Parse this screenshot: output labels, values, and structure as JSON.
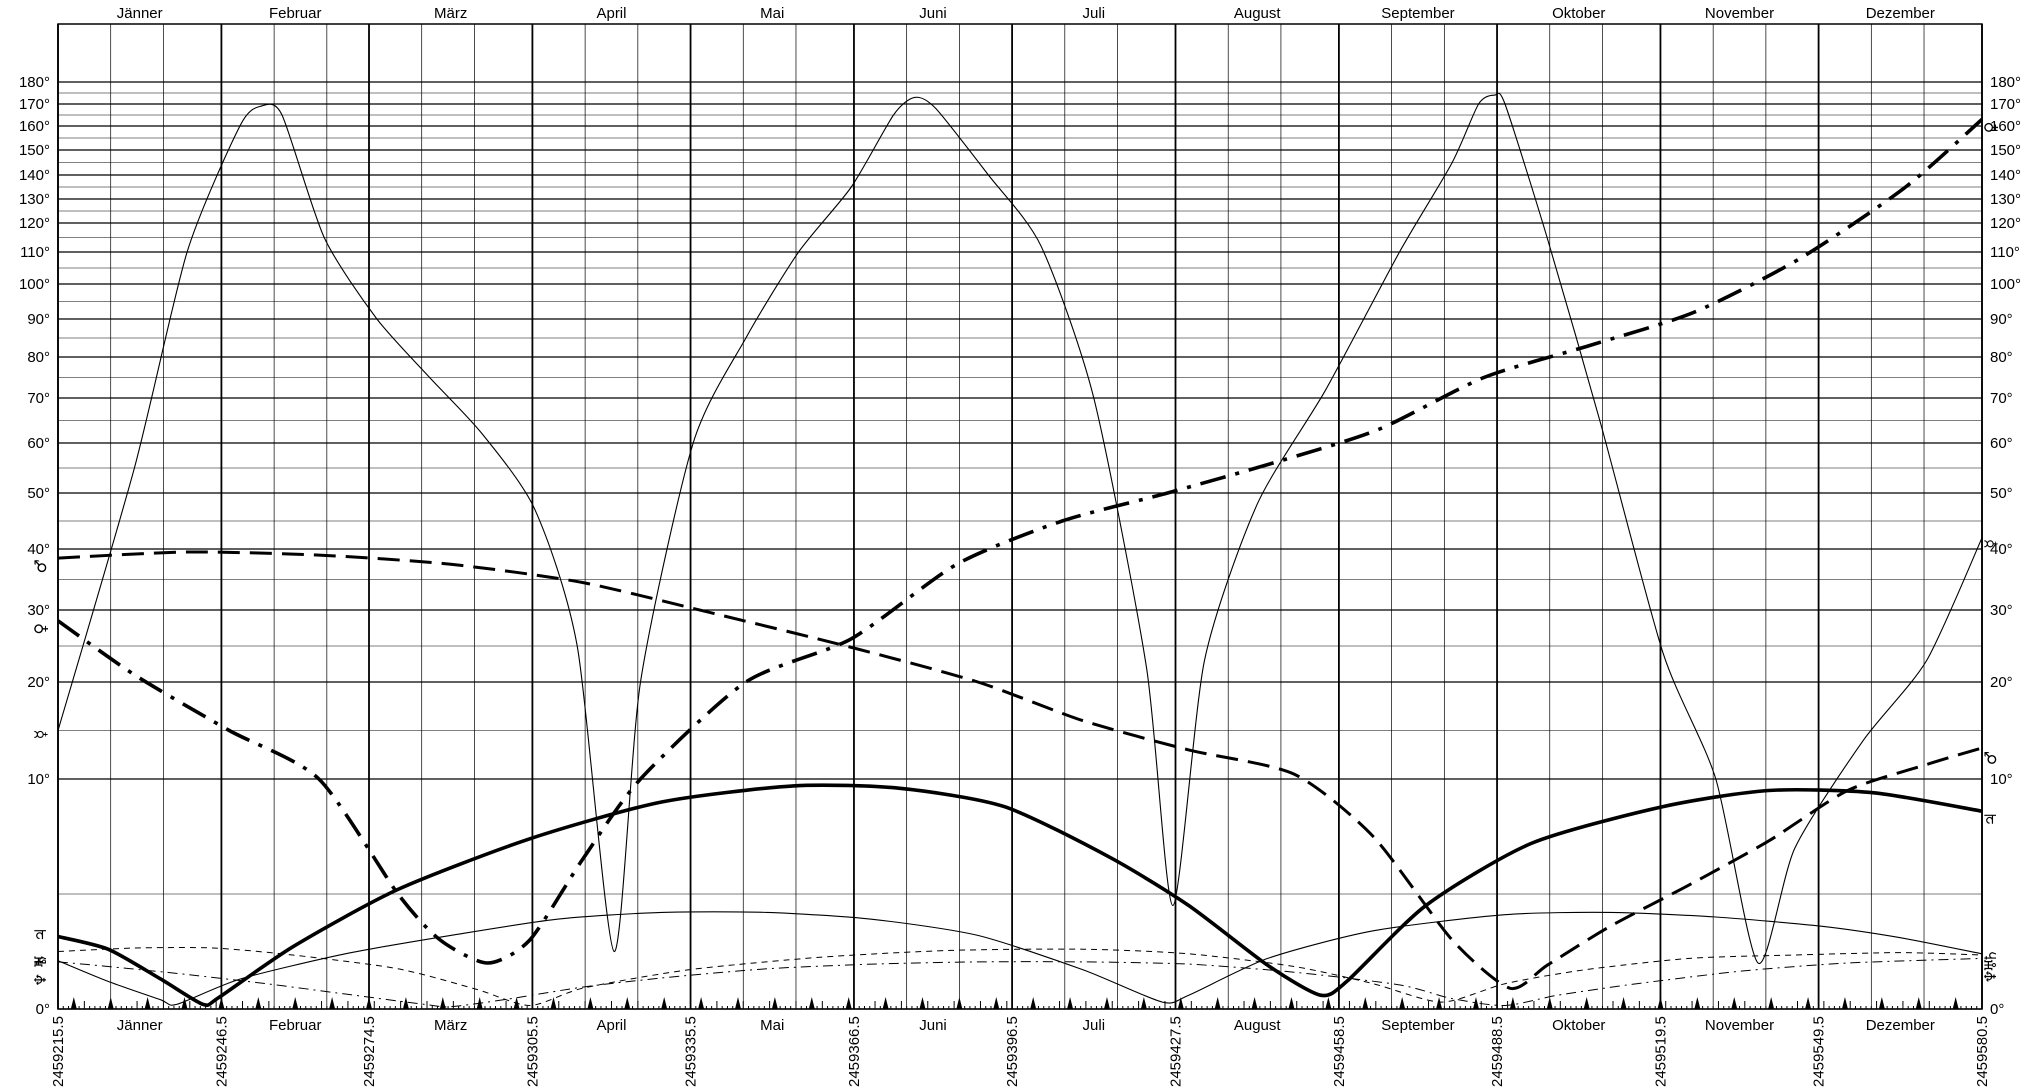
{
  "chart_data": {
    "type": "line",
    "title": "",
    "xlabel": "",
    "ylabel": "",
    "xlim": [
      2459215.5,
      2459580.5
    ],
    "y_axis": {
      "scale": "piecewise",
      "ticks": [
        0,
        10,
        20,
        30,
        40,
        50,
        60,
        70,
        80,
        90,
        100,
        110,
        120,
        130,
        140,
        150,
        160,
        170,
        180
      ],
      "tick_labels": [
        "0°",
        "10°",
        "20°",
        "30°",
        "40°",
        "50°",
        "60°",
        "70°",
        "80°",
        "90°",
        "100°",
        "110°",
        "120°",
        "130°",
        "140°",
        "150°",
        "160°",
        "170°",
        "180°"
      ]
    },
    "months": [
      "Jänner",
      "Februar",
      "März",
      "April",
      "Mai",
      "Juni",
      "Juli",
      "August",
      "September",
      "Oktober",
      "November",
      "Dezember"
    ],
    "month_start_jd": [
      2459215.5,
      2459246.5,
      2459274.5,
      2459305.5,
      2459335.5,
      2459366.5,
      2459396.5,
      2459427.5,
      2459458.5,
      2459488.5,
      2459519.5,
      2459549.5,
      2459580.5
    ],
    "jd_tick_labels": [
      "2459215.5",
      "2459246.5",
      "2459274.5",
      "2459305.5",
      "2459335.5",
      "2459366.5",
      "2459396.5",
      "2459427.5",
      "2459458.5",
      "2459488.5",
      "2459519.5",
      "2459549.5",
      "2459580.5"
    ],
    "grid": true,
    "series": [
      {
        "name": "☿",
        "style": "thin",
        "points": [
          [
            2459215.5,
            15
          ],
          [
            2459230,
            55
          ],
          [
            2459240,
            110
          ],
          [
            2459250,
            160
          ],
          [
            2459254,
            169
          ],
          [
            2459258,
            165
          ],
          [
            2459266,
            115
          ],
          [
            2459276,
            90
          ],
          [
            2459286,
            75
          ],
          [
            2459296,
            62
          ],
          [
            2459306,
            47
          ],
          [
            2459314,
            25
          ],
          [
            2459321,
            2.5
          ],
          [
            2459326,
            20
          ],
          [
            2459336,
            60
          ],
          [
            2459346,
            85
          ],
          [
            2459356,
            110
          ],
          [
            2459366,
            135
          ],
          [
            2459374,
            165
          ],
          [
            2459378,
            173
          ],
          [
            2459382,
            168
          ],
          [
            2459392,
            140
          ],
          [
            2459402,
            112
          ],
          [
            2459412,
            70
          ],
          [
            2459422,
            22
          ],
          [
            2459427,
            4.5
          ],
          [
            2459433,
            23
          ],
          [
            2459443,
            48
          ],
          [
            2459456,
            72
          ],
          [
            2459470,
            110
          ],
          [
            2459480,
            145
          ],
          [
            2459485,
            170
          ],
          [
            2459488,
            174
          ],
          [
            2459490,
            170
          ],
          [
            2459498,
            115
          ],
          [
            2459508,
            65
          ],
          [
            2459520,
            24
          ],
          [
            2459530,
            10
          ],
          [
            2459538,
            2
          ],
          [
            2459545,
            7
          ],
          [
            2459558,
            14
          ],
          [
            2459570,
            23
          ],
          [
            2459580.5,
            42
          ]
        ]
      },
      {
        "name": "♀",
        "style": "thick-dashdot",
        "points": [
          [
            2459215.5,
            28.5
          ],
          [
            2459230,
            21
          ],
          [
            2459248,
            15
          ],
          [
            2459265,
            10
          ],
          [
            2459280,
            5
          ],
          [
            2459288,
            3
          ],
          [
            2459297,
            2
          ],
          [
            2459305,
            3
          ],
          [
            2459315,
            6.5
          ],
          [
            2459326,
            10
          ],
          [
            2459346,
            20
          ],
          [
            2459366,
            26
          ],
          [
            2459386,
            37.5
          ],
          [
            2459406,
            45
          ],
          [
            2459426,
            50
          ],
          [
            2459446,
            56
          ],
          [
            2459466,
            63
          ],
          [
            2459486,
            75
          ],
          [
            2459506,
            83
          ],
          [
            2459526,
            92
          ],
          [
            2459546,
            108
          ],
          [
            2459566,
            135
          ],
          [
            2459580.5,
            163
          ]
        ]
      },
      {
        "name": "♂",
        "style": "dashed",
        "points": [
          [
            2459215.5,
            38.5
          ],
          [
            2459240,
            39.5
          ],
          [
            2459265,
            39
          ],
          [
            2459290,
            37.5
          ],
          [
            2459315,
            34.5
          ],
          [
            2459340,
            29.5
          ],
          [
            2459365,
            25
          ],
          [
            2459390,
            20
          ],
          [
            2459410,
            16
          ],
          [
            2459430,
            13
          ],
          [
            2459450,
            10.5
          ],
          [
            2459465,
            7.5
          ],
          [
            2459480,
            3
          ],
          [
            2459491,
            0.9
          ],
          [
            2459498,
            1.9
          ],
          [
            2459510,
            3.6
          ],
          [
            2459525,
            5.4
          ],
          [
            2459540,
            7.3
          ],
          [
            2459555,
            9.5
          ],
          [
            2459570,
            11.5
          ],
          [
            2459580.5,
            13.2
          ]
        ]
      },
      {
        "name": "♃",
        "style": "thick",
        "points": [
          [
            2459215.5,
            3.15
          ],
          [
            2459225,
            2.6
          ],
          [
            2459235,
            1.3
          ],
          [
            2459243,
            0.2
          ],
          [
            2459246,
            0.5
          ],
          [
            2459260,
            2.7
          ],
          [
            2459280,
            5.2
          ],
          [
            2459305,
            7.4
          ],
          [
            2459330,
            9
          ],
          [
            2459355,
            9.7
          ],
          [
            2459375,
            9.6
          ],
          [
            2459395,
            8.8
          ],
          [
            2459415,
            6.6
          ],
          [
            2459430,
            4.5
          ],
          [
            2459445,
            1.9
          ],
          [
            2459455,
            0.6
          ],
          [
            2459460,
            1.2
          ],
          [
            2459475,
            4.5
          ],
          [
            2459495,
            7.2
          ],
          [
            2459520,
            8.8
          ],
          [
            2459540,
            9.5
          ],
          [
            2459560,
            9.4
          ],
          [
            2459580.5,
            8.6
          ]
        ]
      },
      {
        "name": "♄",
        "style": "thin",
        "points": [
          [
            2459215.5,
            2.1
          ],
          [
            2459225,
            1.2
          ],
          [
            2459235,
            0.4
          ],
          [
            2459238,
            0.2
          ],
          [
            2459250,
            1.3
          ],
          [
            2459270,
            2.4
          ],
          [
            2459290,
            3.2
          ],
          [
            2459310,
            3.9
          ],
          [
            2459330,
            4.2
          ],
          [
            2459350,
            4.2
          ],
          [
            2459370,
            3.9
          ],
          [
            2459390,
            3.2
          ],
          [
            2459410,
            1.7
          ],
          [
            2459425,
            0.3
          ],
          [
            2459430,
            0.6
          ],
          [
            2459445,
            2.2
          ],
          [
            2459465,
            3.4
          ],
          [
            2459490,
            4.1
          ],
          [
            2459510,
            4.2
          ],
          [
            2459530,
            4
          ],
          [
            2459550,
            3.6
          ],
          [
            2459565,
            3.1
          ],
          [
            2459580.5,
            2.4
          ]
        ]
      },
      {
        "name": "♅",
        "style": "dashed-thin",
        "points": [
          [
            2459215.5,
            2.5
          ],
          [
            2459230,
            2.65
          ],
          [
            2459245,
            2.65
          ],
          [
            2459260,
            2.35
          ],
          [
            2459280,
            1.75
          ],
          [
            2459295,
            0.85
          ],
          [
            2459305,
            0.15
          ],
          [
            2459315,
            0.9
          ],
          [
            2459335,
            1.7
          ],
          [
            2459360,
            2.25
          ],
          [
            2459385,
            2.55
          ],
          [
            2459410,
            2.6
          ],
          [
            2459430,
            2.4
          ],
          [
            2459450,
            1.85
          ],
          [
            2459465,
            1.1
          ],
          [
            2459478,
            0.3
          ],
          [
            2459490,
            1.1
          ],
          [
            2459505,
            1.7
          ],
          [
            2459525,
            2.2
          ],
          [
            2459545,
            2.35
          ],
          [
            2459565,
            2.45
          ],
          [
            2459580.5,
            2.35
          ]
        ]
      },
      {
        "name": "♆",
        "style": "dashdot-thin",
        "points": [
          [
            2459215.5,
            2.05
          ],
          [
            2459225,
            1.85
          ],
          [
            2459240,
            1.5
          ],
          [
            2459255,
            1.1
          ],
          [
            2459270,
            0.65
          ],
          [
            2459285,
            0.2
          ],
          [
            2459290,
            0.1
          ],
          [
            2459300,
            0.4
          ],
          [
            2459315,
            0.95
          ],
          [
            2459330,
            1.35
          ],
          [
            2459350,
            1.75
          ],
          [
            2459370,
            1.95
          ],
          [
            2459390,
            2.05
          ],
          [
            2459410,
            2.05
          ],
          [
            2459430,
            1.95
          ],
          [
            2459450,
            1.6
          ],
          [
            2459470,
            1.05
          ],
          [
            2459480,
            0.45
          ],
          [
            2459490,
            0.15
          ],
          [
            2459500,
            0.6
          ],
          [
            2459515,
            1.1
          ],
          [
            2459535,
            1.65
          ],
          [
            2459555,
            2
          ],
          [
            2459580.5,
            2.2
          ]
        ]
      }
    ]
  },
  "left_symbols": [
    "♂",
    "♀",
    "☿",
    "♃",
    "♄",
    "♅",
    "♆"
  ],
  "right_symbols": [
    "♀",
    "☿",
    "♂",
    "♃",
    "♄",
    "♅",
    "♆"
  ]
}
